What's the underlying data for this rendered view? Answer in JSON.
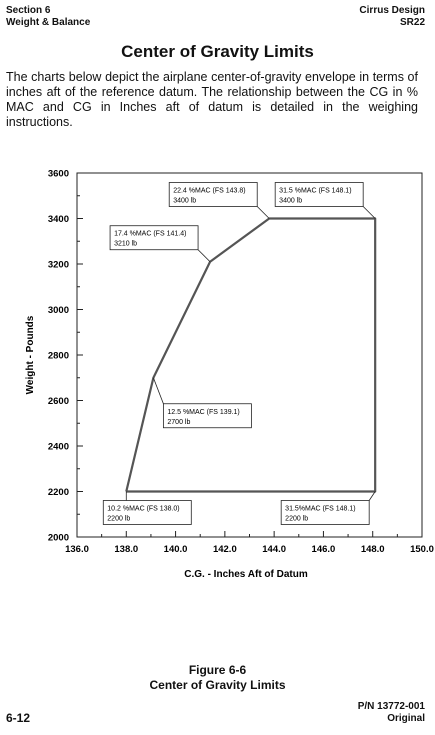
{
  "header": {
    "section": "Section 6",
    "section_title": "Weight & Balance",
    "brand": "Cirrus Design",
    "model": "SR22"
  },
  "title": "Center of Gravity Limits",
  "intro": "The charts below depict the airplane center-of-gravity envelope in terms of inches aft of the reference datum. The relationship between the CG in % MAC and CG in Inches aft of datum is detailed in the weighing instructions.",
  "figure": {
    "number": "Figure 6-6",
    "caption": "Center of Gravity Limits"
  },
  "footer": {
    "page": "6-12",
    "part_number": "P/N 13772-001",
    "revision": "Original"
  },
  "chart_data": {
    "type": "line",
    "title": "",
    "xlabel": "C.G. - Inches Aft of Datum",
    "ylabel": "Weight - Pounds",
    "xlim": [
      136,
      150
    ],
    "ylim": [
      2000,
      3600
    ],
    "x_ticks": [
      136,
      138,
      140,
      142,
      144,
      146,
      148,
      150
    ],
    "x_tick_labels": [
      "136.0",
      "138.0",
      "140.0",
      "142.0",
      "144.0",
      "146.0",
      "148.0",
      "150.0"
    ],
    "y_ticks": [
      2000,
      2200,
      2400,
      2600,
      2800,
      3000,
      3200,
      3400,
      3600
    ],
    "y_tick_labels": [
      "2000",
      "2200",
      "2400",
      "2600",
      "2800",
      "3000",
      "3200",
      "3400",
      "3600"
    ],
    "grid": false,
    "series": [
      {
        "x": [
          138.0,
          139.1,
          141.4,
          143.8,
          148.1,
          148.1,
          138.0
        ],
        "y": [
          2200,
          2700,
          3210,
          3400,
          3400,
          2200,
          2200
        ]
      }
    ],
    "annotations": [
      {
        "line1": "22.4 %MAC (FS 143.8)",
        "line2": "3400 lb",
        "x": 143.8,
        "y": 3400,
        "placement": "upper-left"
      },
      {
        "line1": "31.5 %MAC (FS 148.1)",
        "line2": "3400 lb",
        "x": 148.1,
        "y": 3400,
        "placement": "upper-left"
      },
      {
        "line1": "17.4 %MAC (FS 141.4)",
        "line2": "3210 lb",
        "x": 141.4,
        "y": 3210,
        "placement": "upper-left"
      },
      {
        "line1": "12.5 %MAC (FS 139.1)",
        "line2": "2700 lb",
        "x": 139.1,
        "y": 2700,
        "placement": "lower-right"
      },
      {
        "line1": "10.2 %MAC (FS 138.0)",
        "line2": "2200 lb",
        "x": 138.0,
        "y": 2200,
        "placement": "below"
      },
      {
        "line1": "31.5%MAC (FS 148.1)",
        "line2": "2200 lb",
        "x": 148.1,
        "y": 2200,
        "placement": "lower-left"
      }
    ]
  }
}
